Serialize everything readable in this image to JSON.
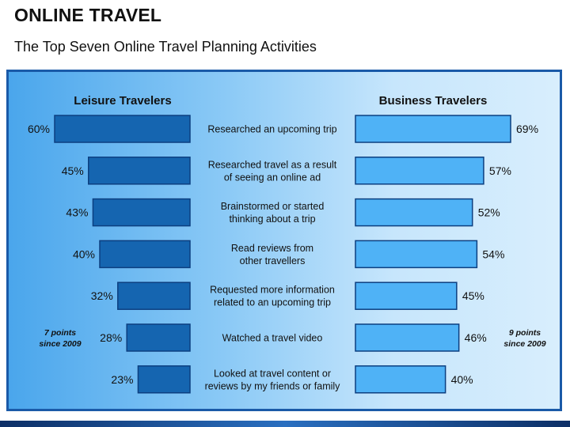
{
  "title": "ONLINE TRAVEL",
  "subtitle": "The Top Seven Online Travel Planning Activities",
  "colors": {
    "leisure_bar": "#1565b0",
    "business_bar": "#4fb2f6",
    "bar_border": "#0c3f80"
  },
  "chart_data": {
    "type": "bar",
    "categories": [
      [
        "Researched an upcoming trip"
      ],
      [
        "Researched travel as a result",
        "of seeing an online ad"
      ],
      [
        "Brainstormed or started",
        "thinking about a trip"
      ],
      [
        "Read reviews from",
        "other travellers"
      ],
      [
        "Requested more information",
        "related to an upcoming trip"
      ],
      [
        "Watched a travel video"
      ],
      [
        "Looked at travel content or",
        "reviews by my friends or family"
      ]
    ],
    "series": [
      {
        "name": "Leisure Travelers",
        "values": [
          60,
          45,
          43,
          40,
          32,
          28,
          23
        ],
        "labels": [
          "60%",
          "45%",
          "43%",
          "40%",
          "32%",
          "28%",
          "23%"
        ]
      },
      {
        "name": "Business Travelers",
        "values": [
          69,
          57,
          52,
          54,
          45,
          46,
          40
        ],
        "labels": [
          "69%",
          "57%",
          "52%",
          "54%",
          "45%",
          "46%",
          "40%"
        ]
      }
    ],
    "annotations": [
      {
        "lines": [
          "7 points",
          "since 2009"
        ],
        "side": "left"
      },
      {
        "lines": [
          "9 points",
          "since 2009"
        ],
        "side": "right"
      }
    ]
  }
}
